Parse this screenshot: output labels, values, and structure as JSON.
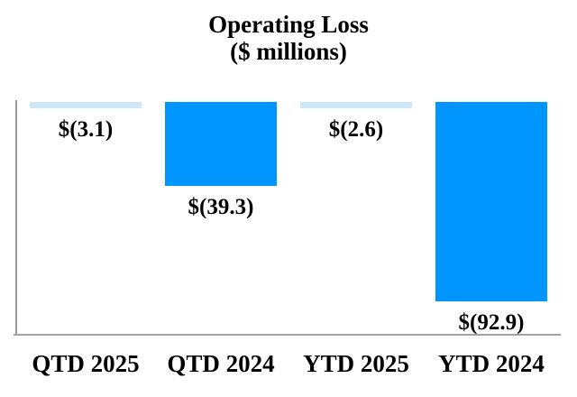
{
  "title": {
    "line1": "Operating Loss",
    "line2": "($ millions)"
  },
  "colors": {
    "bar_light": "#CDE8F9",
    "bar_bright": "#0095FF",
    "axis": "#9A9A9A",
    "text": "#000000"
  },
  "chart_data": {
    "type": "bar",
    "title": "Operating Loss ($ millions)",
    "xlabel": "",
    "ylabel": "",
    "categories": [
      "QTD 2025",
      "QTD 2024",
      "YTD 2025",
      "YTD 2024"
    ],
    "values": [
      -3.1,
      -39.3,
      -2.6,
      -92.9
    ],
    "value_labels": [
      "$(3.1)",
      "$(39.3)",
      "$(2.6)",
      "$(92.9)"
    ],
    "bar_colors": [
      "#CDE8F9",
      "#0095FF",
      "#CDE8F9",
      "#0095FF"
    ],
    "ylim": [
      -100,
      0
    ],
    "grid": false,
    "legend": null,
    "orientation": "vertical",
    "bars_hang_from_zero_line": true
  }
}
